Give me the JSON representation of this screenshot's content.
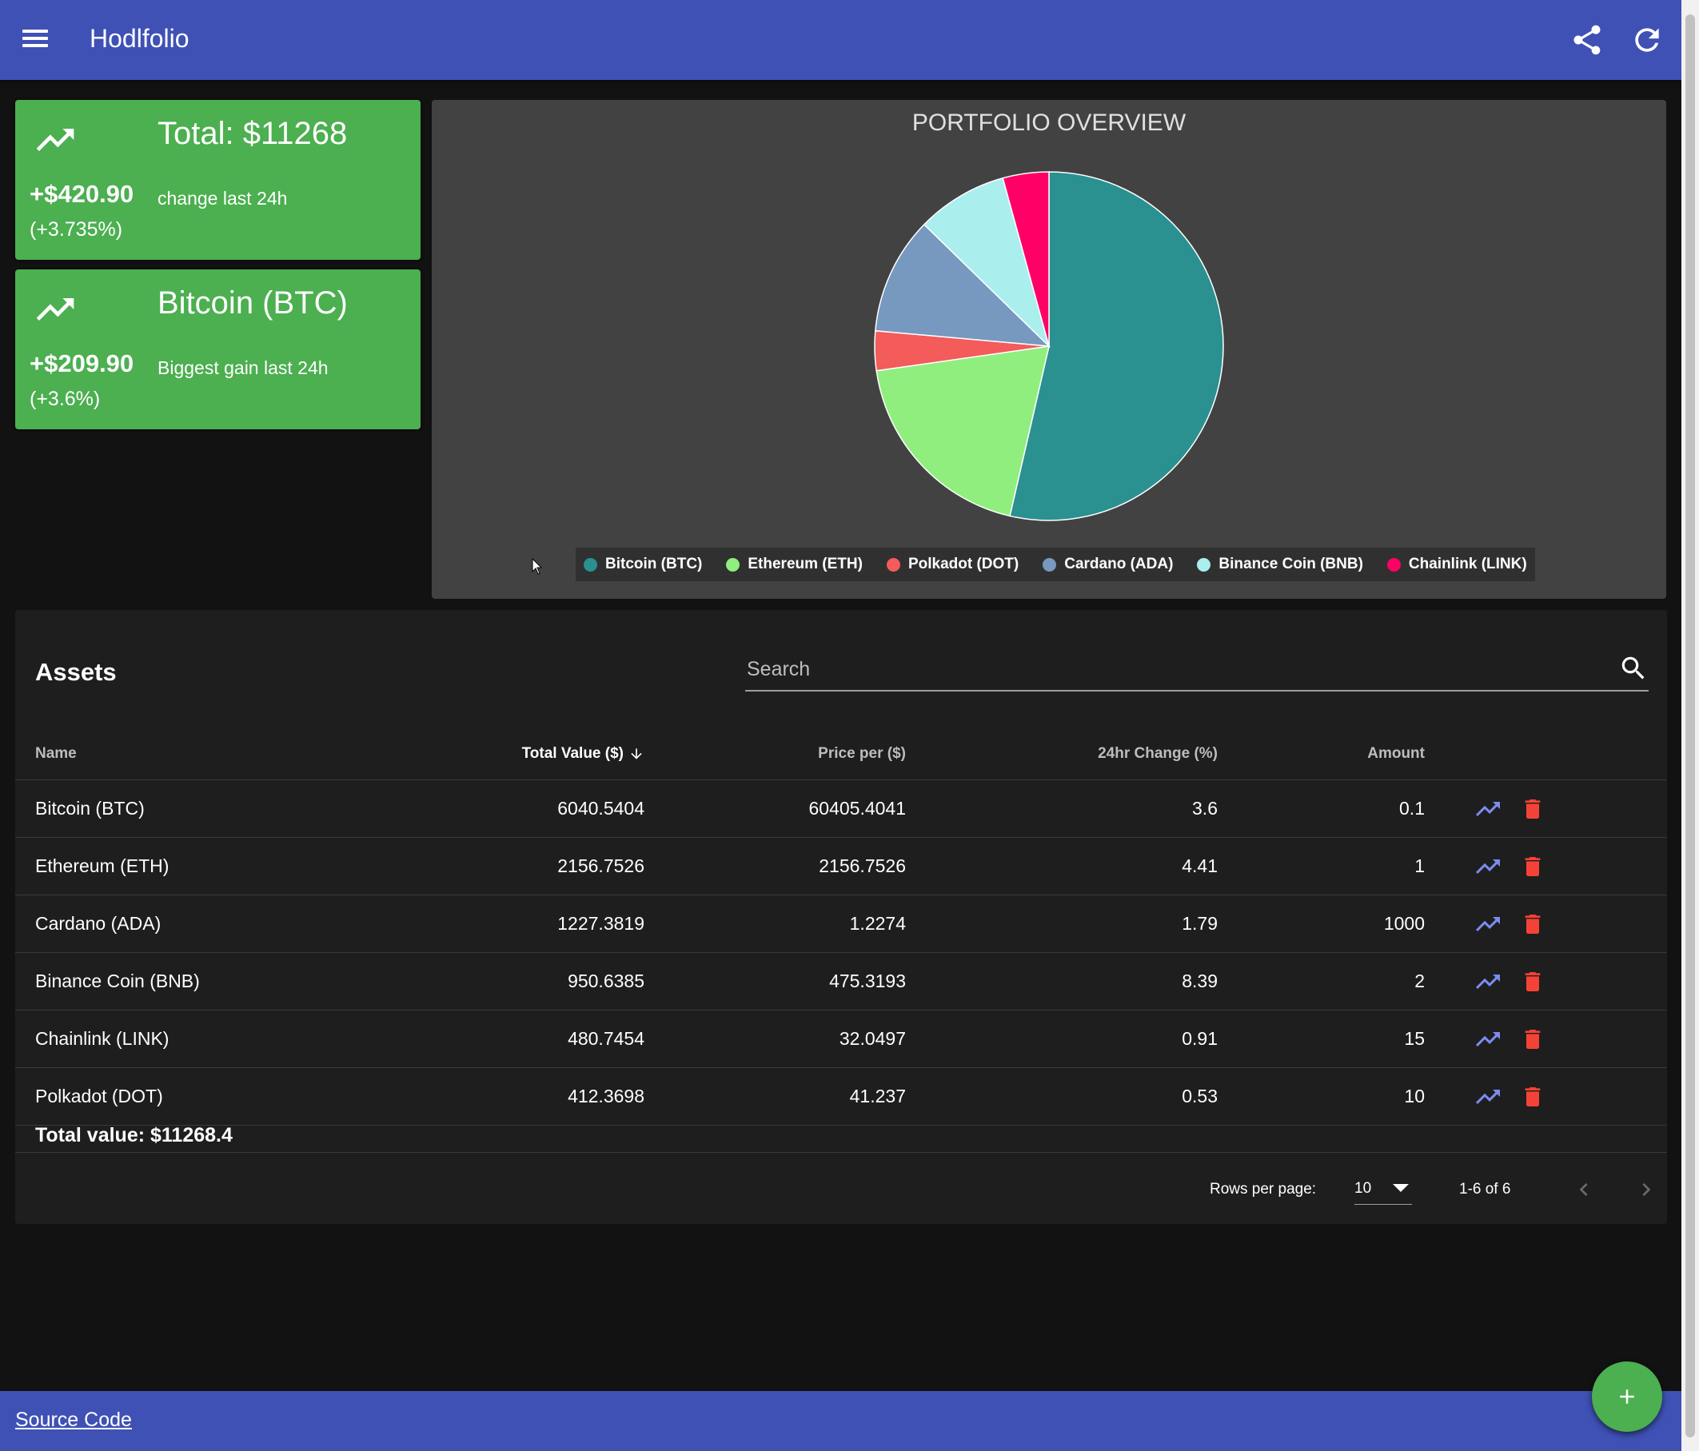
{
  "app": {
    "title": "Hodlfolio"
  },
  "summary": {
    "total": {
      "label": "Total: $11268",
      "delta": "+$420.90",
      "pct": "(+3.735%)",
      "subtitle": "change last 24h"
    },
    "gainer": {
      "label": "Bitcoin (BTC)",
      "delta": "+$209.90",
      "pct": "(+3.6%)",
      "subtitle": "Biggest gain last 24h"
    }
  },
  "chart_data": {
    "type": "pie",
    "title": "PORTFOLIO OVERVIEW",
    "labels": [
      "Bitcoin (BTC)",
      "Ethereum (ETH)",
      "Polkadot (DOT)",
      "Cardano (ADA)",
      "Binance Coin (BNB)",
      "Chainlink (LINK)"
    ],
    "values": [
      6040.5404,
      2156.7526,
      412.3698,
      1227.3819,
      950.6385,
      480.7454
    ],
    "colors": [
      "#2a9090",
      "#90ee7e",
      "#f45b5b",
      "#7798bf",
      "#aaeeee",
      "#ff0066"
    ],
    "legend": "bottom"
  },
  "assets": {
    "heading": "Assets",
    "search_placeholder": "Search",
    "columns": [
      "Name",
      "Total Value ($)",
      "Price per ($)",
      "24hr Change (%)",
      "Amount"
    ],
    "rows": [
      {
        "name": "Bitcoin (BTC)",
        "total": "6040.5404",
        "price": "60405.4041",
        "change": "3.6",
        "amount": "0.1"
      },
      {
        "name": "Ethereum (ETH)",
        "total": "2156.7526",
        "price": "2156.7526",
        "change": "4.41",
        "amount": "1"
      },
      {
        "name": "Cardano (ADA)",
        "total": "1227.3819",
        "price": "1.2274",
        "change": "1.79",
        "amount": "1000"
      },
      {
        "name": "Binance Coin (BNB)",
        "total": "950.6385",
        "price": "475.3193",
        "change": "8.39",
        "amount": "2"
      },
      {
        "name": "Chainlink (LINK)",
        "total": "480.7454",
        "price": "32.0497",
        "change": "0.91",
        "amount": "15"
      },
      {
        "name": "Polkadot (DOT)",
        "total": "412.3698",
        "price": "41.237",
        "change": "0.53",
        "amount": "10"
      }
    ],
    "total_value": "Total value: $11268.4"
  },
  "pagination": {
    "rows_label": "Rows per page:",
    "rows_value": "10",
    "range": "1-6 of 6"
  },
  "footer": {
    "link": "Source Code"
  },
  "colors": {
    "primary": "#3f51b5",
    "success": "#4caf50",
    "trend_icon": "#7b8cf0",
    "delete_icon": "#f44336"
  }
}
